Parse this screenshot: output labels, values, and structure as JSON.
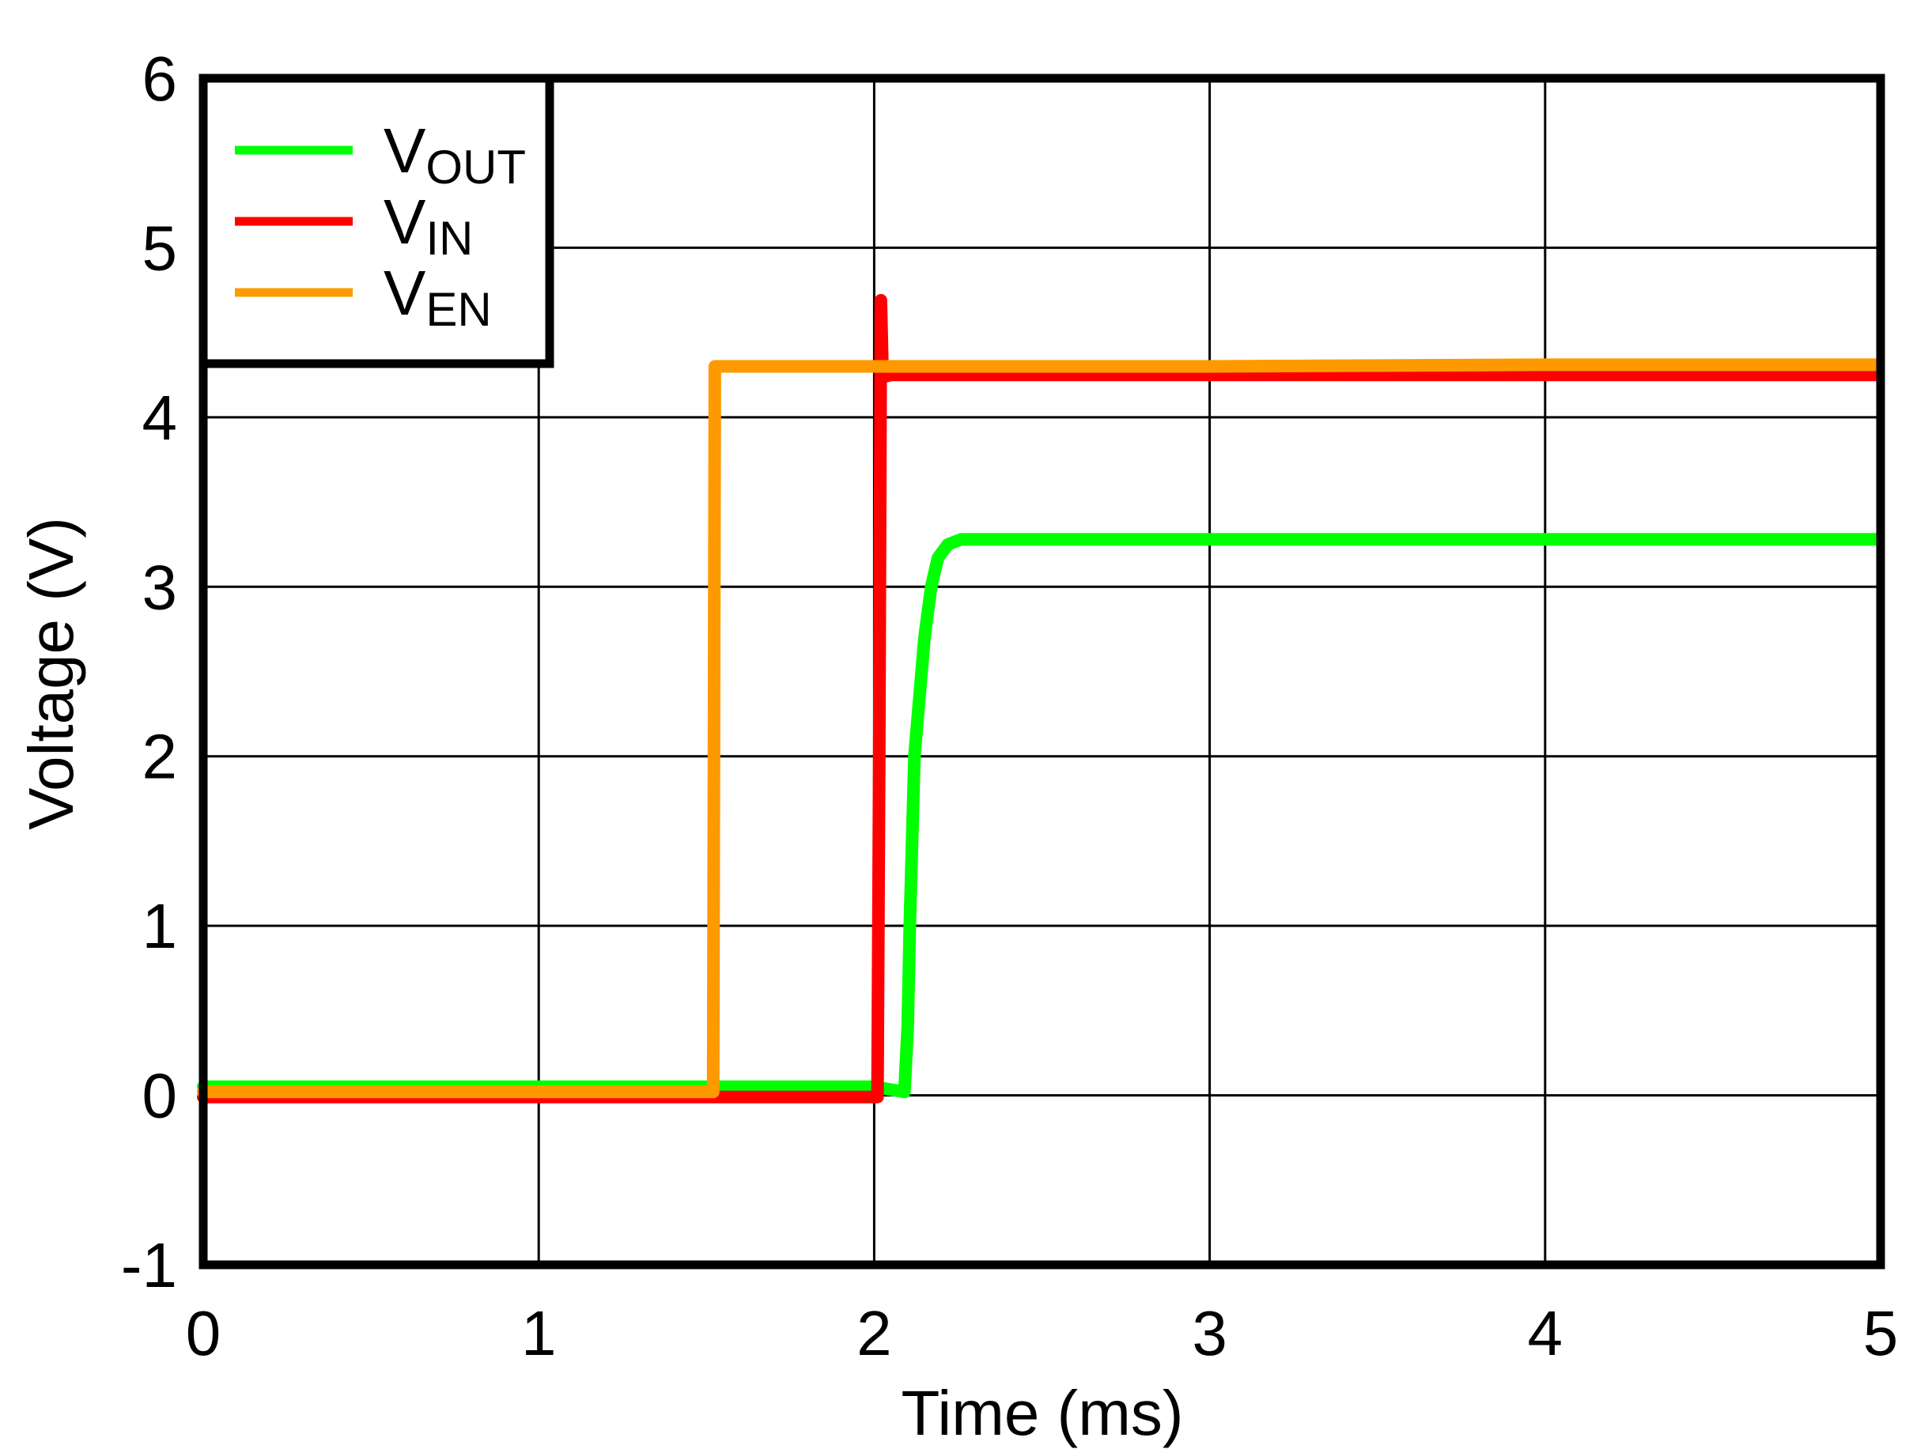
{
  "chart_data": {
    "type": "line",
    "title": "",
    "xlabel": "Time (ms)",
    "ylabel": "Voltage (V)",
    "xlim": [
      0,
      5
    ],
    "ylim": [
      -1,
      6
    ],
    "x_ticks": [
      0,
      1,
      2,
      3,
      4,
      5
    ],
    "y_ticks": [
      -1,
      0,
      1,
      2,
      3,
      4,
      5,
      6
    ],
    "x_tick_labels": [
      "0",
      "1",
      "2",
      "3",
      "4",
      "5"
    ],
    "y_tick_labels": [
      "-1",
      "0",
      "1",
      "2",
      "3",
      "4",
      "5",
      "6"
    ],
    "grid": true,
    "legend_position": "upper-left",
    "series": [
      {
        "name": "VOUT",
        "label_main": "V",
        "label_sub": "OUT",
        "color": "#00FF00",
        "x": [
          0,
          1.0,
          2.0,
          2.09,
          2.1,
          2.106,
          2.12,
          2.15,
          2.17,
          2.19,
          2.22,
          2.26,
          2.35,
          3.0,
          4.0,
          4.99
        ],
        "y": [
          0.05,
          0.05,
          0.05,
          0.02,
          0.4,
          1.0,
          2.0,
          2.7,
          3.0,
          3.17,
          3.25,
          3.28,
          3.28,
          3.28,
          3.28,
          3.28
        ]
      },
      {
        "name": "VIN",
        "label_main": "V",
        "label_sub": "IN",
        "color": "#FF0000",
        "x": [
          0,
          1.0,
          2.01,
          2.015,
          2.02,
          2.025,
          2.03,
          2.05,
          3.0,
          4.0,
          4.99
        ],
        "y": [
          -0.01,
          -0.01,
          -0.01,
          2.0,
          4.69,
          4.26,
          4.24,
          4.25,
          4.25,
          4.25,
          4.25
        ]
      },
      {
        "name": "VEN",
        "label_main": "V",
        "label_sub": "EN",
        "color": "#FF9900",
        "x": [
          0,
          1.0,
          1.52,
          1.525,
          1.53,
          2.0,
          3.0,
          4.0,
          4.99
        ],
        "y": [
          0.02,
          0.02,
          0.02,
          4.3,
          4.3,
          4.3,
          4.3,
          4.31,
          4.31
        ]
      }
    ]
  }
}
